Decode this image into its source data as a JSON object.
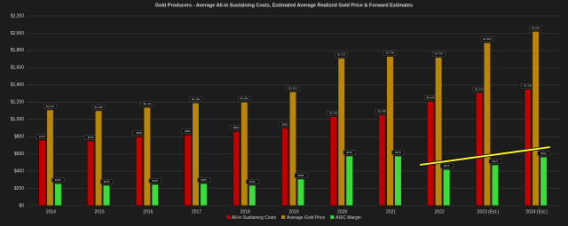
{
  "chart_data": {
    "type": "bar",
    "title": "Gold Producers - Average All-in Sustaining Costs, Estimated Average Realized Gold Price & Forward Estimates",
    "categories": [
      "2014",
      "2015",
      "2016",
      "2017",
      "2018",
      "2019",
      "2020",
      "2021",
      "2022",
      "2023 (Est.)",
      "2024 (Est.)"
    ],
    "series": [
      {
        "name": "All-in Sustaining Costs",
        "color": "#c00000",
        "values": [
          760,
          750,
          800,
          820,
          860,
          900,
          1030,
          1050,
          1210,
          1310,
          1350
        ],
        "value_labels": [
          "$760",
          "$750",
          "$800",
          "$820",
          "$860",
          "$900",
          "$1,030",
          "$1,050",
          "$1,210",
          "$1,310",
          "$1,350"
        ]
      },
      {
        "name": "Average Gold Price",
        "color": "#b8860b",
        "values": [
          1110,
          1100,
          1140,
          1190,
          1200,
          1320,
          1710,
          1730,
          1720,
          1890,
          2020
        ],
        "value_labels": [
          "$1,110",
          "$1,100",
          "$1,140",
          "$1,190",
          "$1,200",
          "$1,320",
          "$1,710",
          "$1,730",
          "$1,720",
          "$1,890",
          "$2,020"
        ]
      },
      {
        "name": "AISC Margin",
        "color": "#3ddc3d",
        "values": [
          256,
          236,
          246,
          256,
          236,
          308,
          575,
          575,
          420,
          472,
          564
        ],
        "value_labels": [
          "$256",
          "$236",
          "$246",
          "$256",
          "$236",
          "$308",
          "$575",
          "$575",
          "$420",
          "$472",
          "$564"
        ]
      }
    ],
    "ylim": [
      0,
      2200
    ],
    "yticks": [
      {
        "value": 0,
        "label": "$0"
      },
      {
        "value": 200,
        "label": "$200"
      },
      {
        "value": 400,
        "label": "$400"
      },
      {
        "value": 600,
        "label": "$600"
      },
      {
        "value": 800,
        "label": "$800"
      },
      {
        "value": 1000,
        "label": "$1,000"
      },
      {
        "value": 1200,
        "label": "$1,200"
      },
      {
        "value": 1400,
        "label": "$1,400"
      },
      {
        "value": 1600,
        "label": "$1,600"
      },
      {
        "value": 1800,
        "label": "$1,800"
      },
      {
        "value": 2000,
        "label": "$2,000"
      },
      {
        "value": 2200,
        "label": "$2,200"
      }
    ],
    "grid": true,
    "legend": "bottom"
  }
}
